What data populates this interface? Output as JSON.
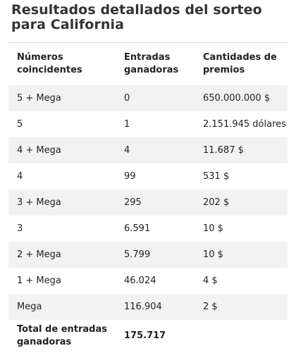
{
  "page": {
    "title": "Resultados detallados del sorteo para California"
  },
  "table": {
    "headers": [
      "Números coincidentes",
      "Entradas ganadoras",
      "Cantidades de premios"
    ],
    "rows": [
      {
        "match": "5 + Mega",
        "winners": "0",
        "prize": "650.000.000 $"
      },
      {
        "match": "5",
        "winners": "1",
        "prize": "2.151.945 dólares"
      },
      {
        "match": "4 + Mega",
        "winners": "4",
        "prize": "11.687 $"
      },
      {
        "match": "4",
        "winners": "99",
        "prize": "531 $"
      },
      {
        "match": "3 + Mega",
        "winners": "295",
        "prize": "202 $"
      },
      {
        "match": "3",
        "winners": "6.591",
        "prize": "10 $"
      },
      {
        "match": "2 + Mega",
        "winners": "5.799",
        "prize": "10 $"
      },
      {
        "match": "1 + Mega",
        "winners": "46.024",
        "prize": "4 $"
      },
      {
        "match": "Mega",
        "winners": "116.904",
        "prize": "2 $"
      }
    ],
    "total": {
      "label": "Total de entradas ganadoras",
      "value": "175.717"
    }
  }
}
